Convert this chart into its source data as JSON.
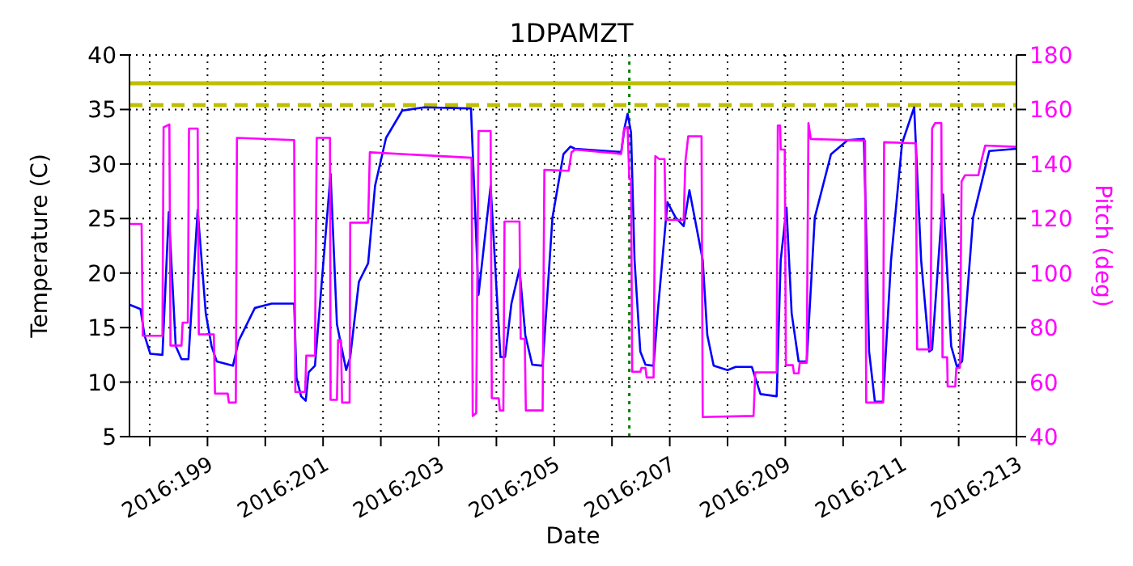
{
  "chart_data": {
    "type": "line",
    "title": "1DPAMZT",
    "xlabel": "Date",
    "ylabel": "Temperature (C)",
    "y2label": "Pitch (deg)",
    "xlim": [
      "2016-07-15T15:36",
      "2016-07-31"
    ],
    "xticks": [
      {
        "value": "2016-07-16",
        "label": null
      },
      {
        "value": "2016-07-17",
        "label": "2016:199"
      },
      {
        "value": "2016-07-18",
        "label": null
      },
      {
        "value": "2016-07-19",
        "label": "2016:201"
      },
      {
        "value": "2016-07-20",
        "label": null
      },
      {
        "value": "2016-07-21",
        "label": "2016:203"
      },
      {
        "value": "2016-07-22",
        "label": null
      },
      {
        "value": "2016-07-23",
        "label": "2016:205"
      },
      {
        "value": "2016-07-24",
        "label": null
      },
      {
        "value": "2016-07-25",
        "label": "2016:207"
      },
      {
        "value": "2016-07-26",
        "label": null
      },
      {
        "value": "2016-07-27",
        "label": "2016:209"
      },
      {
        "value": "2016-07-28",
        "label": null
      },
      {
        "value": "2016-07-29",
        "label": "2016:211"
      },
      {
        "value": "2016-07-30",
        "label": null
      },
      {
        "value": "2016-07-31",
        "label": "2016:213"
      }
    ],
    "ylim": [
      5,
      40
    ],
    "yticks": [
      5,
      10,
      15,
      20,
      25,
      30,
      35,
      40
    ],
    "y2lim": [
      40,
      180
    ],
    "y2ticks": [
      40,
      60,
      80,
      100,
      120,
      140,
      160,
      180
    ],
    "grid": true,
    "line_style": "solid",
    "marker": "none",
    "ref_lines": [
      {
        "axis": "y",
        "value": 37.4,
        "color": "#bfbf00",
        "line_style": "solid"
      },
      {
        "axis": "y",
        "value": 35.4,
        "color": "#bfbf00",
        "line_style": "dashed"
      },
      {
        "axis": "x",
        "value": "2016-07-24T07:12",
        "color": "#008000",
        "line_style": "dotted"
      }
    ],
    "series": [
      {
        "color": "#0000ff",
        "x": [
          "2016-07-15T15:36",
          "2016-07-15T20:10",
          "2016-07-15T21:50",
          "2016-07-16T00:14",
          "2016-07-16T05:17",
          "2016-07-16T07:55",
          "2016-07-16T10:48",
          "2016-07-16T13:12",
          "2016-07-16T16:05",
          "2016-07-16T19:55",
          "2016-07-16T23:17",
          "2016-07-17T01:41",
          "2016-07-17T03:50",
          "2016-07-17T10:34",
          "2016-07-17T12:58",
          "2016-07-17T19:41",
          "2016-07-18T02:38",
          "2016-07-18T12:00",
          "2016-07-18T12:58",
          "2016-07-18T14:53",
          "2016-07-18T16:48",
          "2016-07-18T18:00",
          "2016-07-18T20:38",
          "2016-07-19T03:07",
          "2016-07-19T05:46",
          "2016-07-19T09:36",
          "2016-07-19T11:17",
          "2016-07-19T14:53",
          "2016-07-19T18:43",
          "2016-07-19T21:36",
          "2016-07-20T02:10",
          "2016-07-20T08:53",
          "2016-07-20T18:00",
          "2016-07-21T13:26",
          "2016-07-21T16:34",
          "2016-07-21T21:36",
          "2016-07-22T00:00",
          "2016-07-22T01:41",
          "2016-07-22T03:36",
          "2016-07-22T06:14",
          "2016-07-22T09:36",
          "2016-07-22T12:00",
          "2016-07-22T14:53",
          "2016-07-22T19:12",
          "2016-07-22T23:17",
          "2016-07-23T03:50",
          "2016-07-23T06:43",
          "2016-07-23T08:38",
          "2016-07-24T03:50",
          "2016-07-24T05:17",
          "2016-07-24T06:29",
          "2016-07-24T07:55",
          "2016-07-24T09:22",
          "2016-07-24T11:46",
          "2016-07-24T13:55",
          "2016-07-24T17:17",
          "2016-07-24T18:58",
          "2016-07-24T23:02",
          "2016-07-25T02:24",
          "2016-07-25T05:46",
          "2016-07-25T08:10",
          "2016-07-25T13:41",
          "2016-07-25T15:36",
          "2016-07-25T18:14",
          "2016-07-26T00:00",
          "2016-07-26T03:22",
          "2016-07-26T10:05",
          "2016-07-26T13:41",
          "2016-07-26T20:24",
          "2016-07-26T22:05",
          "2016-07-27T00:29",
          "2016-07-27T02:38",
          "2016-07-27T05:31",
          "2016-07-27T08:53",
          "2016-07-27T12:14",
          "2016-07-27T18:58",
          "2016-07-28T01:55",
          "2016-07-28T08:38",
          "2016-07-28T10:48",
          "2016-07-28T13:12",
          "2016-07-28T16:34",
          "2016-07-28T19:55",
          "2016-07-29T00:29",
          "2016-07-29T05:31",
          "2016-07-29T08:24",
          "2016-07-29T11:46",
          "2016-07-29T12:58",
          "2016-07-29T17:31",
          "2016-07-29T20:53",
          "2016-07-29T23:17",
          "2016-07-30T01:26",
          "2016-07-30T06:00",
          "2016-07-30T12:43",
          "2016-07-31T00:00"
        ],
        "values": [
          17.1,
          16.7,
          14.3,
          12.6,
          12.5,
          25.6,
          13.3,
          12.1,
          12.1,
          25.8,
          16.3,
          13.3,
          11.9,
          11.5,
          13.8,
          16.8,
          17.2,
          17.2,
          10.4,
          8.7,
          8.3,
          10.9,
          11.5,
          29.1,
          15.3,
          11.1,
          12.3,
          19.2,
          20.9,
          28.0,
          32.4,
          34.9,
          35.2,
          35.1,
          18.0,
          28.0,
          18.7,
          12.3,
          12.3,
          17.2,
          20.4,
          14.3,
          11.6,
          11.5,
          25.1,
          30.9,
          31.6,
          31.4,
          31.1,
          33.4,
          34.6,
          32.9,
          21.2,
          12.8,
          11.6,
          11.5,
          16.3,
          26.5,
          25.1,
          24.3,
          27.6,
          21.2,
          14.3,
          11.5,
          11.1,
          11.4,
          11.4,
          8.9,
          8.7,
          21.2,
          26.0,
          16.3,
          11.9,
          11.9,
          25.1,
          30.9,
          32.2,
          32.3,
          12.8,
          8.2,
          8.2,
          21.2,
          31.9,
          35.2,
          21.2,
          12.8,
          13.0,
          27.2,
          13.3,
          11.4,
          11.9,
          25.1,
          31.2,
          31.4
        ]
      },
      {
        "color": "#ff00ff",
        "axis": "y2",
        "x": [
          "2016-07-15T15:36",
          "2016-07-15T20:38",
          "2016-07-15T21:07",
          "2016-07-16T05:17",
          "2016-07-16T05:46",
          "2016-07-16T06:58",
          "2016-07-16T08:10",
          "2016-07-16T08:38",
          "2016-07-16T13:12",
          "2016-07-16T13:41",
          "2016-07-16T15:50",
          "2016-07-16T16:19",
          "2016-07-16T19:55",
          "2016-07-16T20:24",
          "2016-07-17T02:38",
          "2016-07-17T03:07",
          "2016-07-17T08:24",
          "2016-07-17T08:53",
          "2016-07-17T11:46",
          "2016-07-17T12:14",
          "2016-07-18T12:00",
          "2016-07-18T12:29",
          "2016-07-18T16:34",
          "2016-07-18T17:02",
          "2016-07-18T20:38",
          "2016-07-18T21:22",
          "2016-07-19T02:53",
          "2016-07-19T03:07",
          "2016-07-19T05:46",
          "2016-07-19T06:14",
          "2016-07-19T07:26",
          "2016-07-19T07:55",
          "2016-07-19T11:02",
          "2016-07-19T11:17",
          "2016-07-19T18:43",
          "2016-07-19T19:26",
          "2016-07-21T13:41",
          "2016-07-21T14:10",
          "2016-07-21T15:36",
          "2016-07-21T16:34",
          "2016-07-21T21:36",
          "2016-07-21T22:05",
          "2016-07-22T00:58",
          "2016-07-22T01:26",
          "2016-07-22T02:53",
          "2016-07-22T03:22",
          "2016-07-22T09:36",
          "2016-07-22T10:05",
          "2016-07-22T11:46",
          "2016-07-22T12:14",
          "2016-07-22T19:12",
          "2016-07-22T19:55",
          "2016-07-23T06:00",
          "2016-07-23T07:12",
          "2016-07-23T08:38",
          "2016-07-24T03:50",
          "2016-07-24T05:02",
          "2016-07-24T06:29",
          "2016-07-24T07:12",
          "2016-07-24T07:55",
          "2016-07-24T08:24",
          "2016-07-24T11:46",
          "2016-07-24T12:14",
          "2016-07-24T13:55",
          "2016-07-24T14:24",
          "2016-07-24T17:17",
          "2016-07-24T18:00",
          "2016-07-24T19:41",
          "2016-07-24T21:50",
          "2016-07-24T22:19",
          "2016-07-25T05:46",
          "2016-07-25T06:29",
          "2016-07-25T07:41",
          "2016-07-25T13:12",
          "2016-07-25T13:41",
          "2016-07-26T10:48",
          "2016-07-26T11:31",
          "2016-07-26T20:24",
          "2016-07-26T20:53",
          "2016-07-26T21:50",
          "2016-07-26T22:05",
          "2016-07-26T23:46",
          "2016-07-27T00:14",
          "2016-07-27T03:07",
          "2016-07-27T03:36",
          "2016-07-27T05:31",
          "2016-07-27T06:00",
          "2016-07-27T08:53",
          "2016-07-27T09:36",
          "2016-07-27T10:34",
          "2016-07-28T09:07",
          "2016-07-28T09:36",
          "2016-07-28T16:34",
          "2016-07-28T17:02",
          "2016-07-29T06:14",
          "2016-07-29T06:43",
          "2016-07-29T12:14",
          "2016-07-29T12:58",
          "2016-07-29T14:10",
          "2016-07-29T16:48",
          "2016-07-29T17:17",
          "2016-07-29T19:12",
          "2016-07-29T19:26",
          "2016-07-29T22:34",
          "2016-07-29T23:02",
          "2016-07-30T00:29",
          "2016-07-30T01:12",
          "2016-07-30T02:38",
          "2016-07-30T08:10",
          "2016-07-30T09:22",
          "2016-07-30T11:02",
          "2016-07-31T00:00"
        ],
        "values": [
          118,
          118,
          77,
          77,
          153.5,
          154,
          154.5,
          73.4,
          73.4,
          81.8,
          81.8,
          153,
          153,
          77.5,
          77.5,
          55.8,
          55.8,
          52.5,
          52.5,
          149.6,
          148.8,
          56.4,
          56.4,
          69.7,
          69.7,
          149.6,
          149.6,
          53.5,
          53.5,
          75.4,
          75.4,
          52.5,
          52.5,
          118.5,
          118.5,
          144.3,
          142.3,
          47.6,
          48.6,
          152.1,
          152.1,
          54.1,
          54.1,
          49.6,
          49.6,
          118.9,
          118.9,
          75.9,
          75.9,
          49.6,
          49.6,
          137.9,
          137.5,
          144.3,
          145.3,
          143.7,
          153.1,
          153.5,
          134.5,
          134.5,
          63.8,
          63.8,
          65.2,
          65.2,
          61.7,
          61.7,
          142.9,
          141.8,
          141.8,
          119.5,
          119.5,
          140.8,
          150.2,
          150.2,
          47.2,
          47.6,
          63.6,
          63.6,
          154.1,
          154.1,
          145.3,
          145.3,
          66.2,
          66.2,
          63.2,
          63.2,
          67.1,
          67.1,
          155,
          149.2,
          148.6,
          52.5,
          52.5,
          148,
          147.6,
          72,
          72,
          153.1,
          155,
          155,
          69.1,
          69.1,
          58.4,
          58.4,
          65.2,
          65.2,
          133.6,
          135.9,
          135.9,
          141,
          146.8,
          146.3
        ]
      }
    ]
  }
}
